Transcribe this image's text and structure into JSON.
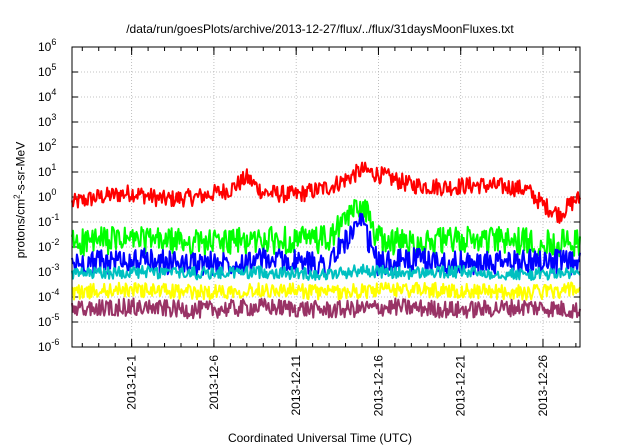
{
  "chart_data": {
    "type": "line",
    "title": "/data/run/goesPlots/archive/2013-12-27/flux/../flux/31daysMoonFluxes.txt",
    "xlabel": "Coordinated Universal Time (UTC)",
    "ylabel_parts": {
      "main": "protons/cm",
      "sup": "2",
      "rest": "-s-sr-MeV"
    },
    "yscale": "log",
    "ylim": [
      1e-06,
      1000000.0
    ],
    "y_ticks": [
      {
        "value": 1e-06,
        "exp": "-6"
      },
      {
        "value": 1e-05,
        "exp": "-5"
      },
      {
        "value": 0.0001,
        "exp": "-4"
      },
      {
        "value": 0.001,
        "exp": "-3"
      },
      {
        "value": 0.01,
        "exp": "-2"
      },
      {
        "value": 0.1,
        "exp": "-1"
      },
      {
        "value": 1,
        "exp": "0"
      },
      {
        "value": 10,
        "exp": "1"
      },
      {
        "value": 100,
        "exp": "2"
      },
      {
        "value": 1000,
        "exp": "3"
      },
      {
        "value": 10000,
        "exp": "4"
      },
      {
        "value": 100000,
        "exp": "5"
      },
      {
        "value": 1000000,
        "exp": "6"
      }
    ],
    "x_ticks": [
      "2013-12-1",
      "2013-12-6",
      "2013-12-11",
      "2013-12-16",
      "2013-12-21",
      "2013-12-26"
    ],
    "xlim": [
      "2013-11-27T09:00",
      "2013-12-28T06:00"
    ],
    "grid": true,
    "series": [
      {
        "color": "#ff0000",
        "x": [
          "2013-11-27",
          "2013-11-29",
          "2013-12-1",
          "2013-12-3",
          "2013-12-5",
          "2013-12-7",
          "2013-12-8",
          "2013-12-9",
          "2013-12-11",
          "2013-12-13",
          "2013-12-14",
          "2013-12-15",
          "2013-12-16",
          "2013-12-18",
          "2013-12-20",
          "2013-12-22",
          "2013-12-24",
          "2013-12-25",
          "2013-12-26",
          "2013-12-27",
          "2013-12-28"
        ],
        "y": [
          0.5,
          1.0,
          1.5,
          0.8,
          1.0,
          2.0,
          6.0,
          1.5,
          1.2,
          2.5,
          5.0,
          12.0,
          8.0,
          3.0,
          2.5,
          3.0,
          2.5,
          2.0,
          0.5,
          0.2,
          0.8
        ]
      },
      {
        "color": "#00ff00",
        "x": [
          "2013-11-27",
          "2013-12-1",
          "2013-12-5",
          "2013-12-9",
          "2013-12-13",
          "2013-12-14",
          "2013-12-15",
          "2013-12-16",
          "2013-12-18",
          "2013-12-22",
          "2013-12-26",
          "2013-12-28"
        ],
        "y": [
          0.015,
          0.02,
          0.015,
          0.018,
          0.02,
          0.12,
          0.6,
          0.02,
          0.015,
          0.02,
          0.015,
          0.015
        ]
      },
      {
        "color": "#0000ff",
        "x": [
          "2013-11-27",
          "2013-12-1",
          "2013-12-5",
          "2013-12-9",
          "2013-12-13",
          "2013-12-14",
          "2013-12-15",
          "2013-12-16",
          "2013-12-18",
          "2013-12-22",
          "2013-12-26",
          "2013-12-28"
        ],
        "y": [
          0.002,
          0.003,
          0.002,
          0.003,
          0.002,
          0.02,
          0.08,
          0.002,
          0.003,
          0.002,
          0.003,
          0.002
        ]
      },
      {
        "color": "#00c0c0",
        "x": [
          "2013-11-27",
          "2013-12-1",
          "2013-12-5",
          "2013-12-9",
          "2013-12-13",
          "2013-12-15",
          "2013-12-17",
          "2013-12-21",
          "2013-12-25",
          "2013-12-28"
        ],
        "y": [
          0.0008,
          0.001,
          0.0009,
          0.001,
          0.0008,
          0.0012,
          0.0009,
          0.001,
          0.0008,
          0.0009
        ]
      },
      {
        "color": "#ffff00",
        "x": [
          "2013-11-27",
          "2013-12-1",
          "2013-12-5",
          "2013-12-9",
          "2013-12-13",
          "2013-12-17",
          "2013-12-21",
          "2013-12-25",
          "2013-12-28"
        ],
        "y": [
          0.00015,
          0.0002,
          0.00015,
          0.0002,
          0.00015,
          0.0002,
          0.00018,
          0.00015,
          0.0002
        ]
      },
      {
        "color": "#993366",
        "x": [
          "2013-11-27",
          "2013-12-1",
          "2013-12-5",
          "2013-12-9",
          "2013-12-13",
          "2013-12-17",
          "2013-12-21",
          "2013-12-25",
          "2013-12-28"
        ],
        "y": [
          3e-05,
          4e-05,
          3e-05,
          4e-05,
          3e-05,
          4e-05,
          3e-05,
          4e-05,
          3e-05
        ]
      }
    ]
  }
}
